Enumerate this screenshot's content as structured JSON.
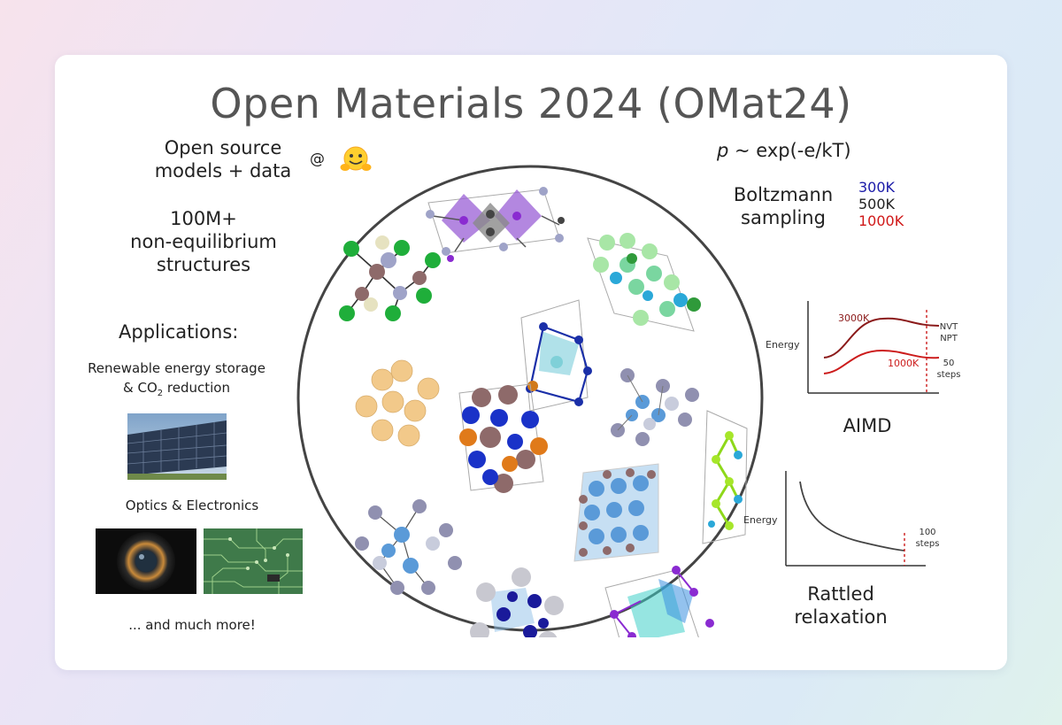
{
  "title": "Open Materials 2024 (OMat24)",
  "left": {
    "open_source": {
      "line1": "Open source",
      "line2": "models + data",
      "at": "@"
    },
    "structures": {
      "line1": "100M+",
      "line2": "non-equilibrium",
      "line3": "structures"
    },
    "applications_heading": "Applications:",
    "renewable": {
      "line1": "Renewable energy storage",
      "line2_prefix": "& CO",
      "line2_sub": "2",
      "line2_suffix": " reduction"
    },
    "optics": "Optics & Electronics",
    "more": "... and much more!"
  },
  "right": {
    "formula": {
      "p": "p",
      "rest": " ~ exp(-e/kT)"
    },
    "boltzmann": {
      "line1": "Boltzmann",
      "line2": "sampling"
    },
    "temperatures": [
      {
        "label": "300K",
        "color": "#1a1aa8"
      },
      {
        "label": "500K",
        "color": "#222222"
      },
      {
        "label": "1000K",
        "color": "#d01818"
      }
    ],
    "aimd_chart": {
      "ylabel": "Energy",
      "curve1_label": "3000K",
      "curve2_label": "1000K",
      "ensemble1": "NVT",
      "ensemble2": "NPT",
      "steps_value": "50",
      "steps_unit": "steps",
      "curve_color": "#8b1a1a",
      "curve2_color": "#cc1c1c"
    },
    "aimd_label": "AIMD",
    "relax_chart": {
      "ylabel": "Energy",
      "steps_value": "100",
      "steps_unit": "steps"
    },
    "relax_label": {
      "line1": "Rattled",
      "line2": "relaxation"
    }
  }
}
